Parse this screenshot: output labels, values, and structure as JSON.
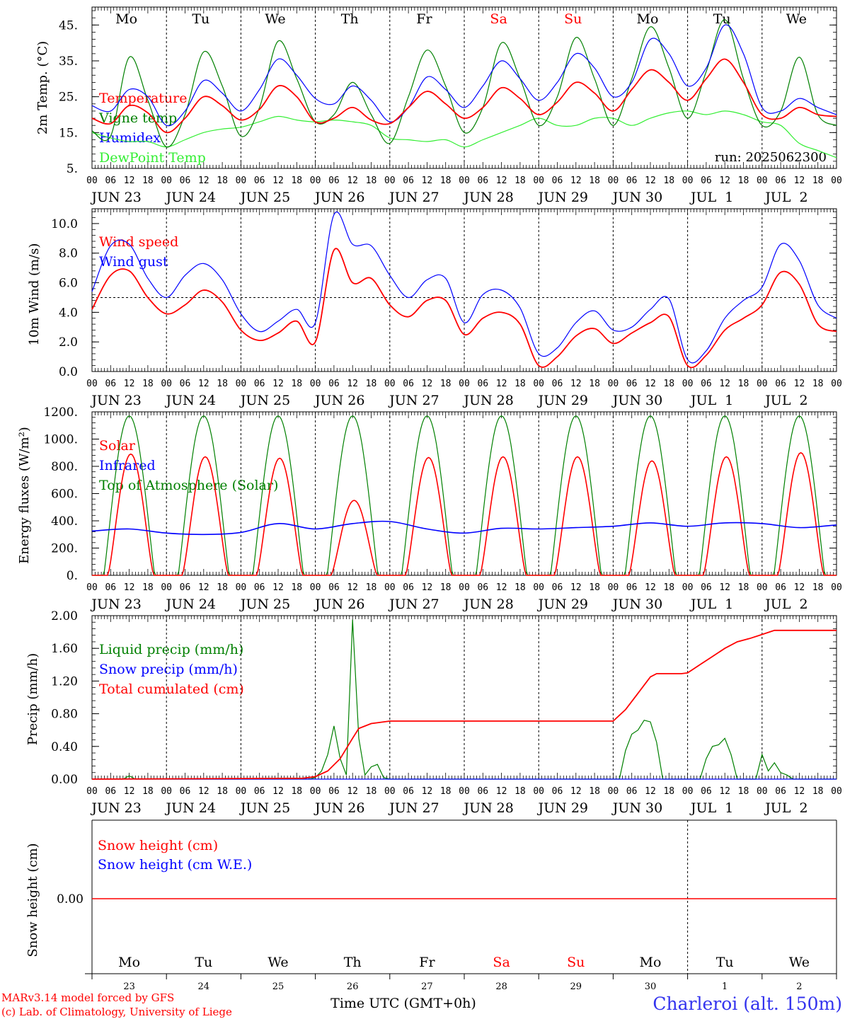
{
  "run_label": "run: 2025062300",
  "footer": {
    "model_line1": "MARv3.14 model forced by GFS",
    "model_line2": "(c) Lab. of Climatology, University of Liege",
    "time_label": "Time UTC (GMT+0h)",
    "station": "Charleroi (alt. 150m)"
  },
  "colors": {
    "red": "#ff0000",
    "green": "#008000",
    "blue": "#0000ff",
    "lightgreen": "#33ee33"
  },
  "days": {
    "weekday_labels": [
      "Mo",
      "Tu",
      "We",
      "Th",
      "Fr",
      "Sa",
      "Su",
      "Mo",
      "Tu",
      "We"
    ],
    "weekday_colors": [
      "#000000",
      "#000000",
      "#000000",
      "#000000",
      "#000000",
      "#ff0000",
      "#ff0000",
      "#000000",
      "#000000",
      "#000000"
    ],
    "date_labels": [
      "JUN 23",
      "JUN 24",
      "JUN 25",
      "JUN 26",
      "JUN 27",
      "JUN 28",
      "JUN 29",
      "JUN 30",
      "JUL  1",
      "JUL  2"
    ],
    "day_numbers": [
      "23",
      "24",
      "25",
      "26",
      "27",
      "28",
      "29",
      "30",
      "1",
      "2"
    ],
    "hour_labels": [
      "00",
      "06",
      "12",
      "18"
    ],
    "last_hour_label": "00"
  },
  "chart_data": [
    {
      "type": "line",
      "ylabel": "2m Temp. (°C)",
      "ylim": [
        5,
        50
      ],
      "yticks": [
        "5.",
        "15.",
        "25.",
        "35.",
        "45."
      ],
      "ytick_values": [
        5,
        15,
        25,
        35,
        45
      ],
      "x_unit": "hours since Jun 23 00 UTC",
      "x": [
        0,
        6,
        12,
        18,
        24,
        30,
        36,
        42,
        48,
        54,
        60,
        66,
        72,
        78,
        84,
        90,
        96,
        102,
        108,
        114,
        120,
        126,
        132,
        138,
        144,
        150,
        156,
        162,
        168,
        174,
        180,
        186,
        192,
        198,
        204,
        210,
        216,
        222,
        228,
        234,
        240
      ],
      "series": [
        {
          "name": "Temperature",
          "color": "#ff0000",
          "values": [
            19,
            17.5,
            22.5,
            20.5,
            15,
            19,
            25,
            22.5,
            18.5,
            21.5,
            28,
            25,
            18,
            19,
            22,
            18.5,
            17.5,
            22,
            26.5,
            23,
            19,
            22,
            27.5,
            24.5,
            20,
            23.5,
            29,
            26,
            21,
            27,
            32.5,
            29,
            24,
            30,
            35.5,
            29,
            20,
            19,
            22,
            20,
            19.5
          ]
        },
        {
          "name": "Vigne temp",
          "color": "#008000",
          "values": [
            15.5,
            14,
            36,
            24,
            11,
            20,
            37.5,
            28,
            14,
            22,
            40.5,
            30,
            18,
            20,
            29,
            20,
            12,
            25,
            38,
            28,
            15,
            22,
            40,
            30,
            17,
            25,
            41.5,
            30,
            17,
            30,
            44.5,
            33,
            19,
            32,
            46.5,
            30,
            17,
            21,
            36,
            20,
            17
          ]
        },
        {
          "name": "Humidex",
          "color": "#0000ff",
          "values": [
            22.5,
            21,
            27,
            25,
            17,
            21,
            29.5,
            26,
            21,
            27,
            35.5,
            31,
            24.5,
            23,
            28,
            24,
            18,
            22,
            30.5,
            27,
            22,
            28,
            35,
            30,
            24,
            29,
            37,
            33,
            25,
            29,
            41,
            37,
            28,
            33,
            45,
            37,
            22,
            21,
            24.5,
            22,
            20
          ]
        },
        {
          "name": "DewPoint Temp",
          "color": "#33ee33",
          "values": [
            15,
            13.5,
            12.5,
            12.5,
            11,
            13,
            15,
            16,
            16.5,
            18,
            19.5,
            18.5,
            18,
            18.5,
            18,
            17,
            13.5,
            13,
            12.5,
            13,
            11,
            13,
            15,
            17,
            19,
            17,
            17,
            19,
            19,
            17,
            19,
            20.5,
            21,
            20,
            21,
            20,
            18,
            17,
            12,
            10,
            8
          ]
        }
      ]
    },
    {
      "type": "line",
      "ylabel": "10m Wind (m/s)",
      "ylim": [
        0,
        11
      ],
      "yticks": [
        "0.0",
        "2.0",
        "4.0",
        "6.0",
        "8.0",
        "10.0"
      ],
      "ytick_values": [
        0,
        2,
        4,
        6,
        8,
        10
      ],
      "reference_line": 5,
      "x_unit": "hours since Jun 23 00 UTC",
      "x": [
        0,
        6,
        12,
        18,
        24,
        30,
        36,
        42,
        48,
        54,
        60,
        66,
        72,
        78,
        84,
        90,
        96,
        102,
        108,
        114,
        120,
        126,
        132,
        138,
        144,
        150,
        156,
        162,
        168,
        174,
        180,
        186,
        192,
        198,
        204,
        210,
        216,
        222,
        228,
        234,
        240
      ],
      "series": [
        {
          "name": "Wind speed",
          "color": "#ff0000",
          "values": [
            4.2,
            6.5,
            6.8,
            5,
            3.9,
            4.5,
            5.5,
            4.7,
            2.8,
            2.1,
            2.6,
            3.4,
            2,
            8.2,
            6,
            6.3,
            4.5,
            3.7,
            4.8,
            4.8,
            2.5,
            3.6,
            4,
            3.2,
            0.4,
            1,
            2.4,
            2.9,
            1.9,
            2.6,
            3.3,
            3.7,
            0.4,
            1.1,
            2.8,
            3.6,
            4.5,
            6.7,
            5.9,
            3.2,
            2.7
          ]
        },
        {
          "name": "Wind gust",
          "color": "#0000ff",
          "values": [
            5.4,
            8.5,
            8.6,
            6.3,
            5,
            6.5,
            7.3,
            6.2,
            3.9,
            2.7,
            3.4,
            4.2,
            3.3,
            10.6,
            8.6,
            8.5,
            6.5,
            5,
            6.2,
            6.3,
            3.3,
            5.2,
            5.5,
            4.3,
            1.2,
            1.6,
            3.3,
            4.1,
            2.8,
            3,
            4.2,
            4.9,
            0.8,
            1.4,
            3.6,
            4.8,
            5.7,
            8.6,
            7.5,
            4.5,
            3.6
          ]
        }
      ]
    },
    {
      "type": "line",
      "ylabel": "Energy fluxes (W/m²)",
      "ylim": [
        0,
        1200
      ],
      "yticks": [
        "0.",
        "200.",
        "400.",
        "600.",
        "800.",
        "1000.",
        "1200."
      ],
      "ytick_values": [
        0,
        200,
        400,
        600,
        800,
        1000,
        1200
      ],
      "x_unit": "hours since Jun 23 00 UTC",
      "solar_peaks": [
        890,
        870,
        860,
        550,
        865,
        870,
        870,
        840,
        870,
        900
      ],
      "toa_peak": 1170,
      "infrared_x": [
        0,
        12,
        24,
        36,
        48,
        60,
        72,
        84,
        96,
        108,
        120,
        132,
        144,
        156,
        168,
        180,
        192,
        204,
        216,
        228,
        240
      ],
      "series": [
        {
          "name": "Solar",
          "color": "#ff0000"
        },
        {
          "name": "Infrared",
          "color": "#0000ff",
          "values": [
            325,
            340,
            310,
            300,
            315,
            380,
            340,
            380,
            395,
            340,
            310,
            345,
            340,
            350,
            360,
            385,
            360,
            385,
            380,
            350,
            370
          ]
        },
        {
          "name": "Top of Atmosphere (Solar)",
          "color": "#008000"
        }
      ]
    },
    {
      "type": "line",
      "ylabel": "Precip (mm/h)",
      "ylim": [
        0,
        2
      ],
      "yticks": [
        "0.00",
        "0.40",
        "0.80",
        "1.20",
        "1.60",
        "2.00"
      ],
      "ytick_values": [
        0,
        0.4,
        0.8,
        1.2,
        1.6,
        2
      ],
      "x_unit": "hours since Jun 23 00 UTC",
      "series": [
        {
          "name": "Liquid precip (mm/h)",
          "color": "#008000",
          "x": [
            0,
            10,
            12,
            14,
            70,
            72,
            74,
            76,
            78,
            80,
            82,
            84,
            86,
            88,
            90,
            92,
            94,
            96,
            98,
            100,
            102,
            170,
            172,
            174,
            176,
            178,
            180,
            182,
            184,
            186,
            188,
            190,
            196,
            198,
            200,
            202,
            204,
            206,
            208,
            210,
            214,
            216,
            218,
            220,
            222,
            224,
            226,
            240
          ],
          "values": [
            0,
            0,
            0.04,
            0,
            0,
            0.02,
            0.1,
            0.3,
            0.65,
            0.25,
            0.05,
            1.95,
            0.5,
            0.05,
            0.15,
            0.18,
            0.02,
            0,
            0,
            0,
            0,
            0,
            0.35,
            0.55,
            0.6,
            0.72,
            0.7,
            0.45,
            0,
            0,
            0,
            0,
            0,
            0.25,
            0.4,
            0.42,
            0.5,
            0.3,
            0,
            0,
            0,
            0.3,
            0.1,
            0.2,
            0.08,
            0.05,
            0,
            0
          ]
        },
        {
          "name": "Snow precip (mm/h)",
          "color": "#0000ff",
          "x": [
            0,
            240
          ],
          "values": [
            0,
            0
          ]
        },
        {
          "name": "Total cumulated (cm)",
          "color": "#ff0000",
          "x": [
            0,
            68,
            72,
            76,
            80,
            84,
            86,
            90,
            96,
            100,
            168,
            172,
            176,
            180,
            182,
            190,
            192,
            196,
            200,
            204,
            208,
            212,
            216,
            220,
            240
          ],
          "values": [
            0,
            0.01,
            0.03,
            0.1,
            0.25,
            0.5,
            0.62,
            0.68,
            0.71,
            0.71,
            0.71,
            0.85,
            1.05,
            1.25,
            1.29,
            1.29,
            1.3,
            1.4,
            1.5,
            1.6,
            1.68,
            1.72,
            1.77,
            1.82,
            1.82
          ]
        }
      ]
    },
    {
      "type": "line",
      "ylabel": "Snow height (cm)",
      "yticks": [
        "0.00"
      ],
      "x_unit": "days",
      "series": [
        {
          "name": "Snow height (cm)",
          "color": "#ff0000",
          "x": [
            0,
            10
          ],
          "values": [
            0,
            0
          ]
        },
        {
          "name": "Snow height (cm W.E.)",
          "color": "#0000ff"
        }
      ]
    }
  ]
}
